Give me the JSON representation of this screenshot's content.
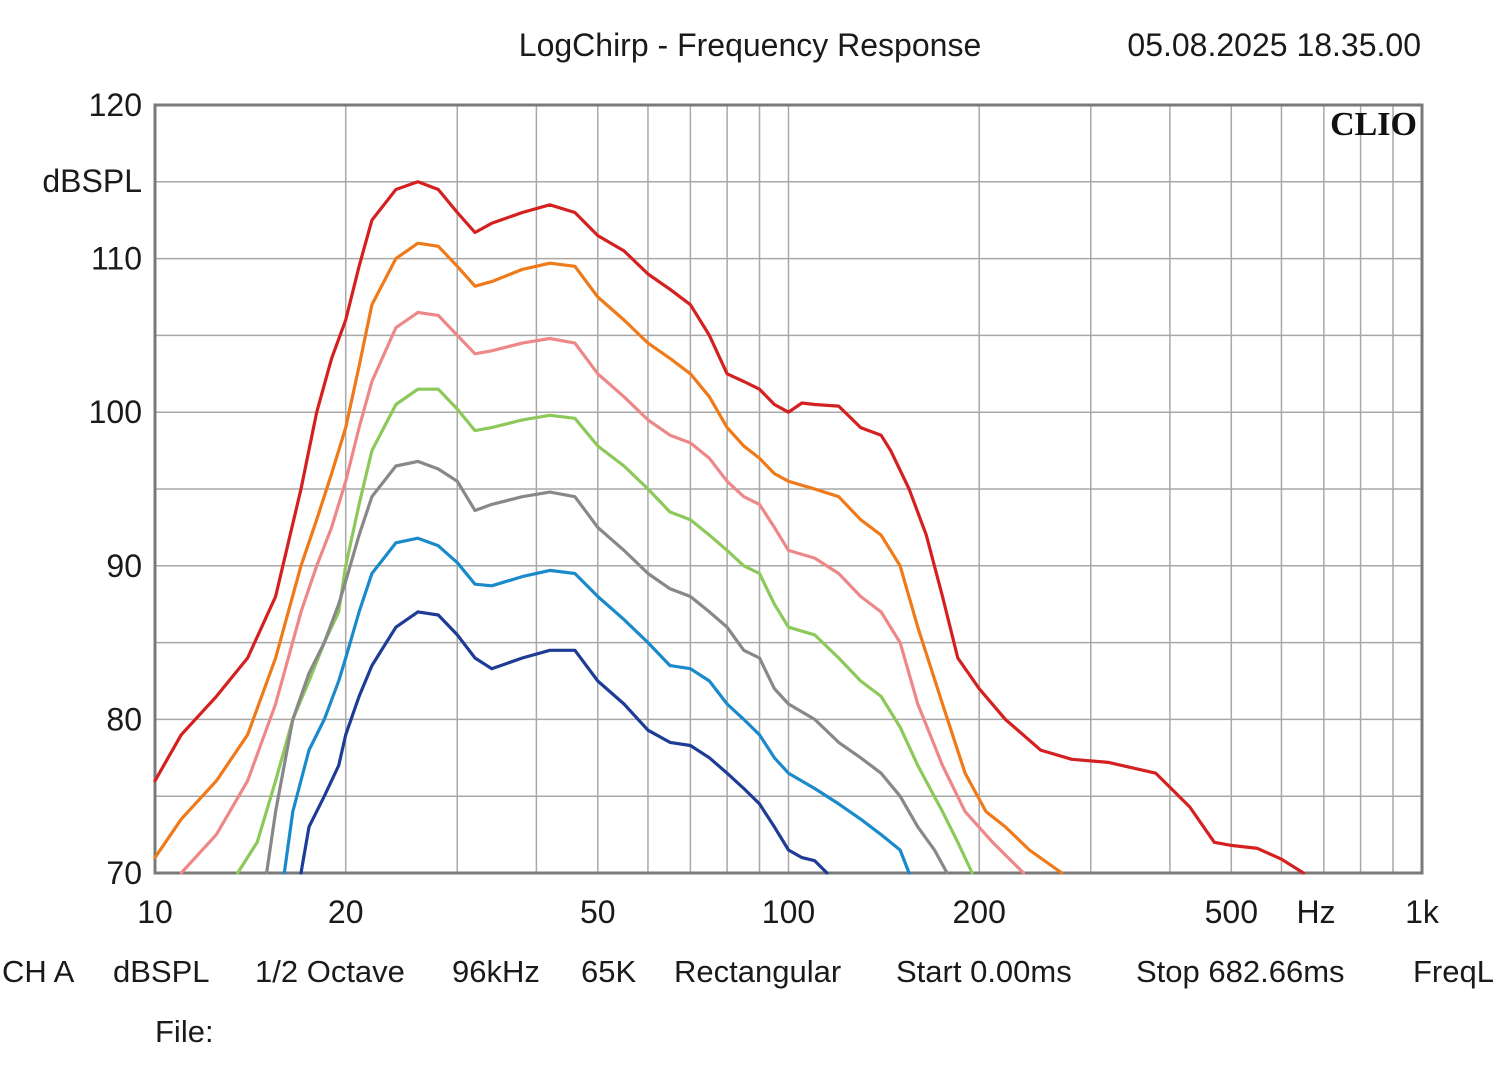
{
  "header": {
    "title": "LogChirp - Frequency Response",
    "timestamp": "05.08.2025 18.35.00"
  },
  "brand": "CLIO",
  "footer": {
    "items": [
      "CH A",
      "dBSPL",
      "1/2 Octave",
      "96kHz",
      "65K",
      "Rectangular",
      "Start 0.00ms",
      "Stop 682.66ms",
      "FreqL"
    ],
    "file_label": "File:"
  },
  "chart_data": {
    "type": "line",
    "title": "LogChirp - Frequency Response",
    "xlabel": "Hz",
    "ylabel": "dBSPL",
    "xscale": "log",
    "xlim": [
      10,
      1000
    ],
    "ylim": [
      70,
      120
    ],
    "grid": true,
    "x_ticks": [
      {
        "value": 10,
        "label": "10"
      },
      {
        "value": 20,
        "label": "20"
      },
      {
        "value": 50,
        "label": "50"
      },
      {
        "value": 100,
        "label": "100"
      },
      {
        "value": 200,
        "label": "200"
      },
      {
        "value": 500,
        "label": "500"
      },
      {
        "value": 1000,
        "label": "1k"
      }
    ],
    "y_ticks": [
      {
        "value": 120,
        "label": "120"
      },
      {
        "value": 110,
        "label": "110"
      },
      {
        "value": 100,
        "label": "100"
      },
      {
        "value": 90,
        "label": "90"
      },
      {
        "value": 80,
        "label": "80"
      },
      {
        "value": 70,
        "label": "70"
      }
    ],
    "series": [
      {
        "color": "#d42020",
        "points": [
          [
            10,
            76
          ],
          [
            11,
            79
          ],
          [
            12.5,
            81.5
          ],
          [
            14,
            84
          ],
          [
            15.5,
            88
          ],
          [
            17,
            95
          ],
          [
            18,
            100
          ],
          [
            19,
            103.5
          ],
          [
            20,
            106
          ],
          [
            21,
            109.5
          ],
          [
            22,
            112.5
          ],
          [
            24,
            114.5
          ],
          [
            26,
            115
          ],
          [
            28,
            114.5
          ],
          [
            30,
            113
          ],
          [
            32,
            111.7
          ],
          [
            34,
            112.3
          ],
          [
            38,
            113
          ],
          [
            42,
            113.5
          ],
          [
            46,
            113
          ],
          [
            50,
            111.5
          ],
          [
            55,
            110.5
          ],
          [
            60,
            109
          ],
          [
            65,
            108
          ],
          [
            70,
            107
          ],
          [
            75,
            105
          ],
          [
            80,
            102.5
          ],
          [
            85,
            102
          ],
          [
            90,
            101.5
          ],
          [
            95,
            100.5
          ],
          [
            100,
            100
          ],
          [
            105,
            100.6
          ],
          [
            110,
            100.5
          ],
          [
            120,
            100.4
          ],
          [
            130,
            99
          ],
          [
            140,
            98.5
          ],
          [
            145,
            97.5
          ],
          [
            155,
            95
          ],
          [
            165,
            92
          ],
          [
            175,
            88
          ],
          [
            185,
            84
          ],
          [
            200,
            82
          ],
          [
            220,
            80
          ],
          [
            250,
            78
          ],
          [
            280,
            77.4
          ],
          [
            320,
            77.2
          ],
          [
            380,
            76.5
          ],
          [
            430,
            74.3
          ],
          [
            470,
            72
          ],
          [
            500,
            71.8
          ],
          [
            550,
            71.6
          ],
          [
            600,
            70.9
          ],
          [
            650,
            70
          ]
        ]
      },
      {
        "color": "#ee7a1a",
        "points": [
          [
            10,
            71
          ],
          [
            11,
            73.5
          ],
          [
            12.5,
            76
          ],
          [
            14,
            79
          ],
          [
            15.5,
            84
          ],
          [
            17,
            90
          ],
          [
            18,
            93
          ],
          [
            19,
            96
          ],
          [
            20,
            99
          ],
          [
            21,
            103
          ],
          [
            22,
            107
          ],
          [
            24,
            110
          ],
          [
            26,
            111
          ],
          [
            28,
            110.8
          ],
          [
            30,
            109.5
          ],
          [
            32,
            108.2
          ],
          [
            34,
            108.5
          ],
          [
            38,
            109.3
          ],
          [
            42,
            109.7
          ],
          [
            46,
            109.5
          ],
          [
            50,
            107.5
          ],
          [
            55,
            106
          ],
          [
            60,
            104.5
          ],
          [
            65,
            103.5
          ],
          [
            70,
            102.5
          ],
          [
            75,
            101
          ],
          [
            80,
            99
          ],
          [
            85,
            97.8
          ],
          [
            90,
            97
          ],
          [
            95,
            96
          ],
          [
            100,
            95.5
          ],
          [
            110,
            95
          ],
          [
            120,
            94.5
          ],
          [
            130,
            93
          ],
          [
            140,
            92
          ],
          [
            150,
            90
          ],
          [
            160,
            86
          ],
          [
            175,
            81
          ],
          [
            190,
            76.5
          ],
          [
            205,
            74
          ],
          [
            220,
            73
          ],
          [
            240,
            71.5
          ],
          [
            270,
            70
          ]
        ]
      },
      {
        "color": "#ee8888",
        "points": [
          [
            11,
            70
          ],
          [
            12.5,
            72.5
          ],
          [
            14,
            76
          ],
          [
            15.5,
            81
          ],
          [
            17,
            87
          ],
          [
            18,
            90
          ],
          [
            19,
            92.5
          ],
          [
            20,
            95.5
          ],
          [
            21,
            99
          ],
          [
            22,
            102
          ],
          [
            24,
            105.5
          ],
          [
            26,
            106.5
          ],
          [
            28,
            106.3
          ],
          [
            30,
            105
          ],
          [
            32,
            103.8
          ],
          [
            34,
            104
          ],
          [
            38,
            104.5
          ],
          [
            42,
            104.8
          ],
          [
            46,
            104.5
          ],
          [
            50,
            102.5
          ],
          [
            55,
            101
          ],
          [
            60,
            99.5
          ],
          [
            65,
            98.5
          ],
          [
            70,
            98
          ],
          [
            75,
            97
          ],
          [
            80,
            95.5
          ],
          [
            85,
            94.5
          ],
          [
            90,
            94
          ],
          [
            95,
            92.5
          ],
          [
            100,
            91
          ],
          [
            110,
            90.5
          ],
          [
            120,
            89.5
          ],
          [
            130,
            88
          ],
          [
            140,
            87
          ],
          [
            150,
            85
          ],
          [
            160,
            81
          ],
          [
            175,
            77
          ],
          [
            190,
            74
          ],
          [
            210,
            72
          ],
          [
            235,
            70
          ]
        ]
      },
      {
        "color": "#8cc85a",
        "points": [
          [
            13.5,
            70
          ],
          [
            14.5,
            72
          ],
          [
            15.5,
            76
          ],
          [
            16.5,
            80
          ],
          [
            17.5,
            82.5
          ],
          [
            18.5,
            85
          ],
          [
            19.5,
            87
          ],
          [
            20,
            90
          ],
          [
            21,
            94
          ],
          [
            22,
            97.5
          ],
          [
            24,
            100.5
          ],
          [
            26,
            101.5
          ],
          [
            28,
            101.5
          ],
          [
            30,
            100.2
          ],
          [
            32,
            98.8
          ],
          [
            34,
            99
          ],
          [
            38,
            99.5
          ],
          [
            42,
            99.8
          ],
          [
            46,
            99.6
          ],
          [
            50,
            97.8
          ],
          [
            55,
            96.5
          ],
          [
            60,
            95
          ],
          [
            65,
            93.5
          ],
          [
            70,
            93
          ],
          [
            75,
            92
          ],
          [
            80,
            91
          ],
          [
            85,
            90
          ],
          [
            90,
            89.5
          ],
          [
            95,
            87.5
          ],
          [
            100,
            86
          ],
          [
            110,
            85.5
          ],
          [
            120,
            84
          ],
          [
            130,
            82.5
          ],
          [
            140,
            81.5
          ],
          [
            150,
            79.5
          ],
          [
            160,
            77
          ],
          [
            175,
            74
          ],
          [
            185,
            72
          ],
          [
            195,
            70
          ]
        ]
      },
      {
        "color": "#888888",
        "points": [
          [
            15,
            70
          ],
          [
            15.5,
            74
          ],
          [
            16.5,
            80
          ],
          [
            17.5,
            83
          ],
          [
            18.5,
            85
          ],
          [
            19.5,
            87.5
          ],
          [
            20,
            89
          ],
          [
            21,
            92
          ],
          [
            22,
            94.5
          ],
          [
            24,
            96.5
          ],
          [
            26,
            96.8
          ],
          [
            28,
            96.3
          ],
          [
            30,
            95.5
          ],
          [
            32,
            93.6
          ],
          [
            34,
            94
          ],
          [
            38,
            94.5
          ],
          [
            42,
            94.8
          ],
          [
            46,
            94.5
          ],
          [
            50,
            92.5
          ],
          [
            55,
            91
          ],
          [
            60,
            89.5
          ],
          [
            65,
            88.5
          ],
          [
            70,
            88
          ],
          [
            75,
            87
          ],
          [
            80,
            86
          ],
          [
            85,
            84.5
          ],
          [
            90,
            84
          ],
          [
            95,
            82
          ],
          [
            100,
            81
          ],
          [
            110,
            80
          ],
          [
            120,
            78.5
          ],
          [
            130,
            77.5
          ],
          [
            140,
            76.5
          ],
          [
            150,
            75
          ],
          [
            160,
            73
          ],
          [
            170,
            71.5
          ],
          [
            178,
            70
          ]
        ]
      },
      {
        "color": "#1a8acb",
        "points": [
          [
            16,
            70
          ],
          [
            16.5,
            74
          ],
          [
            17.5,
            78
          ],
          [
            18.5,
            80
          ],
          [
            19.5,
            82.5
          ],
          [
            20,
            84
          ],
          [
            21,
            87
          ],
          [
            22,
            89.5
          ],
          [
            24,
            91.5
          ],
          [
            26,
            91.8
          ],
          [
            28,
            91.3
          ],
          [
            30,
            90.2
          ],
          [
            32,
            88.8
          ],
          [
            34,
            88.7
          ],
          [
            38,
            89.3
          ],
          [
            42,
            89.7
          ],
          [
            46,
            89.5
          ],
          [
            50,
            88
          ],
          [
            55,
            86.5
          ],
          [
            60,
            85
          ],
          [
            65,
            83.5
          ],
          [
            70,
            83.3
          ],
          [
            75,
            82.5
          ],
          [
            80,
            81
          ],
          [
            85,
            80
          ],
          [
            90,
            79
          ],
          [
            95,
            77.5
          ],
          [
            100,
            76.5
          ],
          [
            110,
            75.5
          ],
          [
            120,
            74.5
          ],
          [
            130,
            73.5
          ],
          [
            140,
            72.5
          ],
          [
            150,
            71.5
          ],
          [
            155,
            70
          ]
        ]
      },
      {
        "color": "#1e3c96",
        "points": [
          [
            17,
            70
          ],
          [
            17.5,
            73
          ],
          [
            18.5,
            75
          ],
          [
            19.5,
            77
          ],
          [
            20,
            79
          ],
          [
            21,
            81.5
          ],
          [
            22,
            83.5
          ],
          [
            24,
            86
          ],
          [
            26,
            87
          ],
          [
            28,
            86.8
          ],
          [
            30,
            85.5
          ],
          [
            32,
            84
          ],
          [
            34,
            83.3
          ],
          [
            38,
            84
          ],
          [
            42,
            84.5
          ],
          [
            46,
            84.5
          ],
          [
            50,
            82.5
          ],
          [
            55,
            81
          ],
          [
            60,
            79.3
          ],
          [
            65,
            78.5
          ],
          [
            70,
            78.3
          ],
          [
            75,
            77.5
          ],
          [
            80,
            76.5
          ],
          [
            85,
            75.5
          ],
          [
            90,
            74.5
          ],
          [
            95,
            73
          ],
          [
            100,
            71.5
          ],
          [
            105,
            71
          ],
          [
            110,
            70.8
          ],
          [
            115,
            70
          ]
        ]
      }
    ]
  }
}
